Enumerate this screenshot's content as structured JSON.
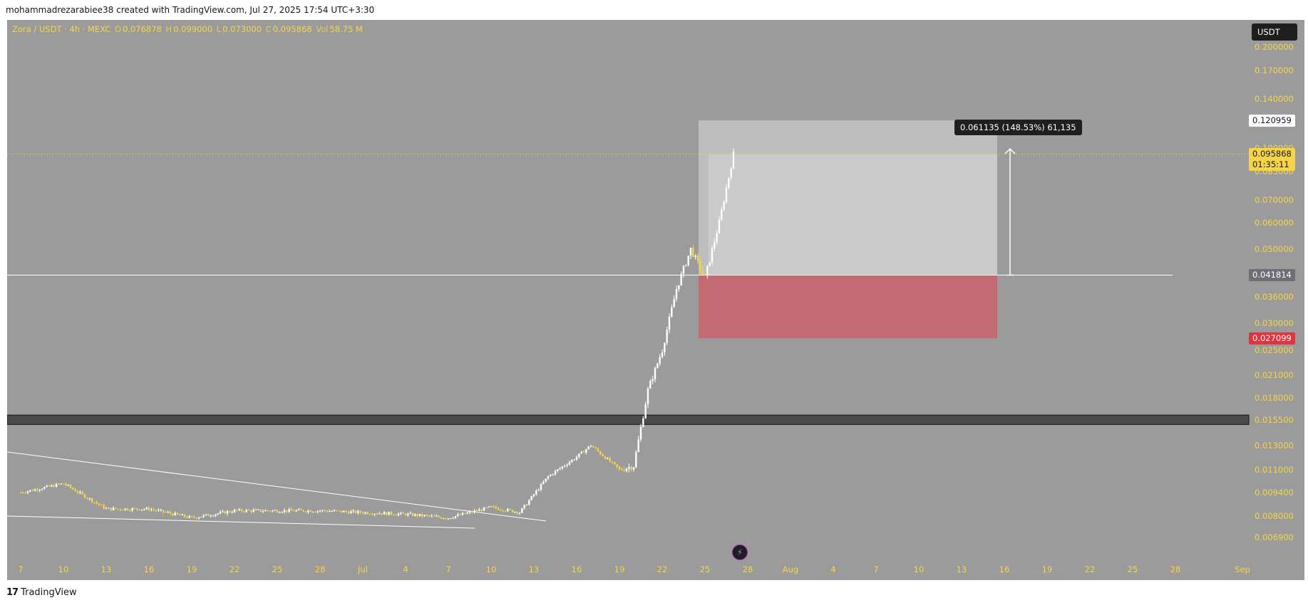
{
  "caption": "mohammadrezarabiee38 created with TradingView.com, Jul 27, 2025 17:54 UTC+3:30",
  "symbol_line": {
    "pair": "Zora / USDT · 4h · MEXC",
    "o_label": "O",
    "o": "0.076878",
    "h_label": "H",
    "h": "0.099000",
    "l_label": "L",
    "l": "0.073000",
    "c_label": "C",
    "c": "0.095868",
    "vol_label": "Vol",
    "vol": "58.75 M"
  },
  "currency": "USDT",
  "measure_label": "0.061135 (148.53%) 61,135",
  "tags": {
    "target": "0.120959",
    "last_price": "0.095868",
    "countdown": "01:35:11",
    "entry": "0.041814",
    "stop": "0.027099"
  },
  "colors": {
    "background": "#9b9b9b",
    "price_text": "#f5d547",
    "up_candle": "#ffffff",
    "down_candle": "#f5d547",
    "profit_zone": "#c4c4c4",
    "loss_zone": "#c46a72",
    "stop_tag": "#e0343f"
  },
  "footer": "TradingView",
  "chart_data": {
    "type": "candlestick",
    "title": "Zora / USDT · 4h · MEXC",
    "y_scale": "log",
    "y_ticks": [
      "0.200000",
      "0.170000",
      "0.140000",
      "0.100000",
      "0.085000",
      "0.070000",
      "0.060000",
      "0.050000",
      "0.036000",
      "0.030000",
      "0.025000",
      "0.021000",
      "0.018000",
      "0.015500",
      "0.013000",
      "0.011000",
      "0.009400",
      "0.008000",
      "0.006900"
    ],
    "x_ticks": [
      "7",
      "10",
      "13",
      "16",
      "19",
      "22",
      "25",
      "28",
      "Jul",
      "4",
      "7",
      "10",
      "13",
      "16",
      "19",
      "22",
      "25",
      "28",
      "Aug",
      "4",
      "7",
      "10",
      "13",
      "16",
      "19",
      "22",
      "25",
      "28",
      "Sep"
    ],
    "close_path": [
      [
        "Jun 7",
        0.0094
      ],
      [
        "Jun 10",
        0.01
      ],
      [
        "Jun 13",
        0.0084
      ],
      [
        "Jun 16",
        0.0084
      ],
      [
        "Jun 19",
        0.0079
      ],
      [
        "Jun 22",
        0.0083
      ],
      [
        "Jun 25",
        0.0083
      ],
      [
        "Jun 28",
        0.0083
      ],
      [
        "Jul 1",
        0.0082
      ],
      [
        "Jul 4",
        0.0081
      ],
      [
        "Jul 7",
        0.0079
      ],
      [
        "Jul 10",
        0.0085
      ],
      [
        "Jul 12",
        0.0082
      ],
      [
        "Jul 14",
        0.0105
      ],
      [
        "Jul 16",
        0.012
      ],
      [
        "Jul 17",
        0.013
      ],
      [
        "Jul 19",
        0.011
      ],
      [
        "Jul 20",
        0.0113
      ],
      [
        "Jul 21",
        0.019
      ],
      [
        "Jul 22",
        0.025
      ],
      [
        "Jul 23",
        0.038
      ],
      [
        "Jul 24",
        0.05
      ],
      [
        "Jul 25",
        0.041
      ],
      [
        "Jul 26",
        0.06
      ],
      [
        "Jul 27",
        0.0959
      ]
    ],
    "position": {
      "target": 0.120959,
      "entry": 0.041814,
      "stop": 0.027099,
      "last": 0.095868
    },
    "resistance_zone": [
      0.015,
      0.016
    ],
    "grid": false
  }
}
